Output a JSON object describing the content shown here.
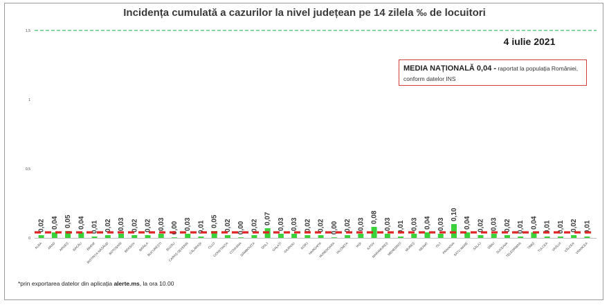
{
  "chart_data": {
    "type": "bar",
    "title": "Incidența cumulată a cazurilor la nivel județean pe 14 zilela ‰ de locuitori",
    "date": "4 iulie 2021",
    "ylim": [
      0,
      1.5
    ],
    "yticks": [
      "0",
      "0,5",
      "1",
      "1,5"
    ],
    "reference_line": 1.5,
    "national_average": 0.04,
    "categories": [
      "ALBA",
      "ARAD",
      "ARGEȘ",
      "BACĂU",
      "BIHOR",
      "BISTRIȚA-NĂSĂUD",
      "BOTOȘANI",
      "BRAȘOV",
      "BRĂILA",
      "BUCUREȘTI",
      "BUZĂU",
      "CARAȘ-SEVERIN",
      "CĂLĂRAȘI",
      "CLUJ",
      "CONSTANȚA",
      "COVASNA",
      "DÂMBOVIȚA",
      "DOLJ",
      "GALAȚI",
      "GIURGIU",
      "GORJ",
      "HARGHITA",
      "HUNEDOARA",
      "IALOMIȚA",
      "IAȘI",
      "ILFOV",
      "MARAMUREȘ",
      "MEHEDINȚI",
      "MUREȘ",
      "NEAMȚ",
      "OLT",
      "PRAHOVA",
      "SATU MARE",
      "SĂLAJ",
      "SIBIU",
      "SUCEAVA",
      "TELEORMAN",
      "TIMIȘ",
      "TULCEA",
      "VASLUI",
      "VÂLCEA",
      "VRANCEA"
    ],
    "values": [
      0.02,
      0.04,
      0.05,
      0.04,
      0.01,
      0.02,
      0.03,
      0.02,
      0.02,
      0.03,
      0.0,
      0.03,
      0.01,
      0.05,
      0.02,
      0.0,
      0.02,
      0.07,
      0.03,
      0.03,
      0.02,
      0.02,
      0.0,
      0.02,
      0.03,
      0.08,
      0.03,
      0.01,
      0.03,
      0.04,
      0.03,
      0.1,
      0.04,
      0.02,
      0.03,
      0.02,
      0.01,
      0.04,
      0.01,
      0.01,
      0.02,
      0.01
    ],
    "value_labels": [
      "0,02",
      "0,04",
      "0,05",
      "0,04",
      "0,01",
      "0,02",
      "0,03",
      "0,02",
      "0,02",
      "0,03",
      "0,00",
      "0,03",
      "0,01",
      "0,05",
      "0,02",
      "0,00",
      "0,02",
      "0,07",
      "0,03",
      "0,03",
      "0,02",
      "0,02",
      "0,00",
      "0,02",
      "0,03",
      "0,08",
      "0,03",
      "0,01",
      "0,03",
      "0,04",
      "0,03",
      "0,10",
      "0,04",
      "0,02",
      "0,03",
      "0,02",
      "0,01",
      "0,04",
      "0,01",
      "0,01",
      "0,02",
      "0,01"
    ],
    "colors": {
      "bar": "#3ad13a",
      "national_line": "#e02424",
      "reference_line": "#3cba6c",
      "box_border": "#d43c3c"
    }
  },
  "national_box": {
    "bold_text": "MEDIA NAȚIONALĂ 0,04 -",
    "line1_rest": " raportat la populația României,",
    "line2": "conform datelor INS"
  },
  "footnote": {
    "prefix": "*prin exportarea datelor din aplicația ",
    "app": "alerte.ms",
    "suffix": ", la ora 10.00"
  }
}
